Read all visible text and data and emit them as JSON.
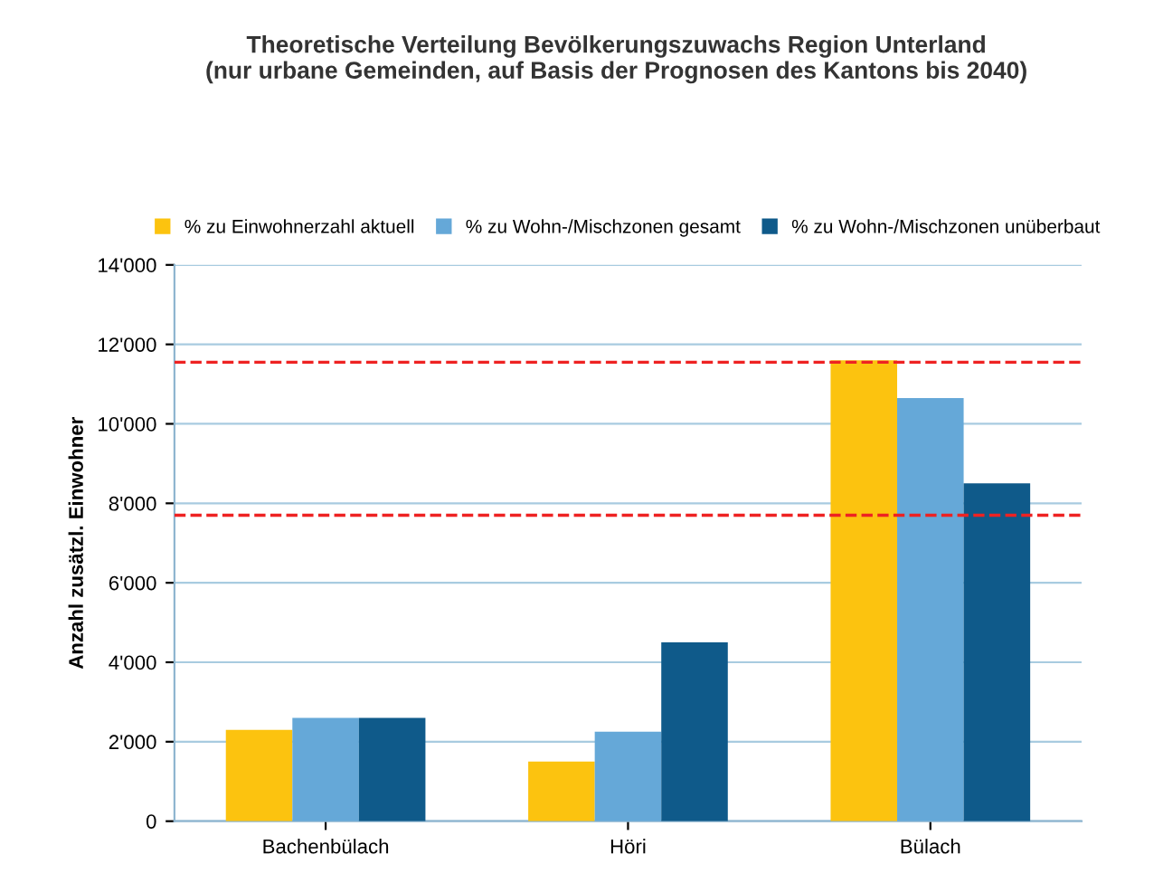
{
  "chart_data": {
    "type": "bar",
    "title": "Theoretische Verteilung Bevölkerungszuwachs Region Unterland\n(nur urbane Gemeinden, auf Basis der Prognosen des Kantons bis 2040)",
    "ylabel": "Anzahl zusätzl. Einwohner",
    "categories": [
      "Bachenbülach",
      "Höri",
      "Bülach"
    ],
    "series": [
      {
        "name": "% zu Einwohnerzahl aktuell",
        "color": "#fcc30f",
        "values": [
          2300,
          1500,
          11600
        ]
      },
      {
        "name": "% zu Wohn-/Mischzonen gesamt",
        "color": "#65a8d8",
        "values": [
          2600,
          2250,
          10650
        ]
      },
      {
        "name": "% zu Wohn-/Mischzonen unüberbaut",
        "color": "#0f5a8a",
        "values": [
          2600,
          4500,
          8500
        ]
      }
    ],
    "ylim": [
      0,
      14000
    ],
    "yticks": [
      0,
      {
        "value": 2000,
        "label": "2'000"
      },
      {
        "value": 4000,
        "label": "4'000"
      },
      {
        "value": 6000,
        "label": "6'000"
      },
      {
        "value": 8000,
        "label": "8'000"
      },
      {
        "value": 10000,
        "label": "10'000"
      },
      {
        "value": 12000,
        "label": "12'000"
      },
      {
        "value": 14000,
        "label": "14'000"
      }
    ],
    "grid": "y",
    "legend": "top",
    "ref_lines": [
      {
        "axis": "y",
        "value": 11550,
        "color": "#ee2222",
        "line_style": "dashed"
      },
      {
        "axis": "y",
        "value": 7700,
        "color": "#ee2222",
        "line_style": "dashed"
      }
    ]
  }
}
